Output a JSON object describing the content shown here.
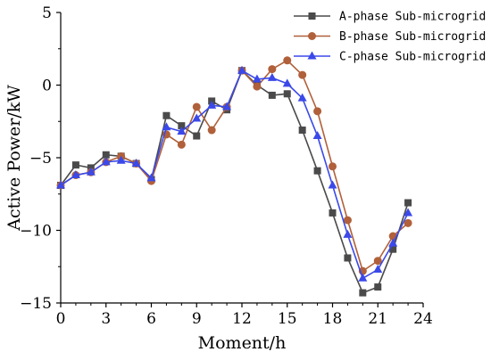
{
  "chart_data": {
    "type": "line",
    "xlabel": "Moment/h",
    "ylabel": "Active Power/kW",
    "xlim": [
      0,
      24
    ],
    "ylim": [
      -15,
      5
    ],
    "xticks": [
      0,
      3,
      6,
      9,
      12,
      15,
      18,
      21,
      24
    ],
    "yticks": [
      5,
      0,
      -5,
      -10,
      -15
    ],
    "grid": false,
    "legend_position": "top-right",
    "x": [
      0,
      1,
      2,
      3,
      4,
      5,
      6,
      7,
      8,
      9,
      10,
      11,
      12,
      13,
      14,
      15,
      16,
      17,
      18,
      19,
      20,
      21,
      22,
      23
    ],
    "series": [
      {
        "name": "A-phase Sub-microgrid",
        "color": "#4a4a4a",
        "marker": "square",
        "values": [
          -6.9,
          -5.5,
          -5.7,
          -4.8,
          -4.9,
          -5.4,
          -6.5,
          -2.1,
          -2.8,
          -3.5,
          -1.1,
          -1.7,
          1.0,
          0.0,
          -0.7,
          -0.6,
          -3.1,
          -5.9,
          -8.8,
          -11.9,
          -14.3,
          -13.9,
          -11.3,
          -8.1
        ]
      },
      {
        "name": "B-phase Sub-microgrid",
        "color": "#b0603a",
        "marker": "circle",
        "values": [
          -6.9,
          -6.2,
          -6.0,
          -5.3,
          -4.9,
          -5.4,
          -6.6,
          -3.4,
          -4.1,
          -1.5,
          -3.1,
          -1.5,
          1.0,
          -0.1,
          1.1,
          1.7,
          0.7,
          -1.8,
          -5.6,
          -9.3,
          -12.8,
          -12.1,
          -10.4,
          -9.5
        ]
      },
      {
        "name": "C-phase Sub-microgrid",
        "color": "#3b49e8",
        "marker": "triangle",
        "values": [
          -6.9,
          -6.2,
          -6.0,
          -5.3,
          -5.2,
          -5.4,
          -6.4,
          -2.9,
          -3.2,
          -2.3,
          -1.4,
          -1.5,
          1.0,
          0.4,
          0.5,
          0.1,
          -0.9,
          -3.5,
          -6.9,
          -10.3,
          -13.3,
          -12.7,
          -10.9,
          -8.8
        ]
      }
    ]
  }
}
